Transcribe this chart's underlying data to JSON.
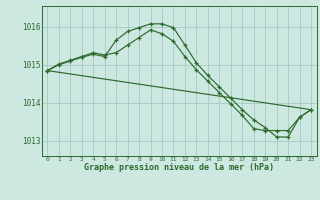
{
  "line1": {
    "x": [
      0,
      1,
      2,
      3,
      4,
      5,
      6,
      7,
      8,
      9,
      10,
      11,
      12,
      13,
      14,
      15,
      16,
      17,
      18,
      19,
      20,
      21,
      22,
      23
    ],
    "y": [
      1014.85,
      1015.0,
      1015.1,
      1015.2,
      1015.28,
      1015.22,
      1015.65,
      1015.88,
      1015.98,
      1016.08,
      1016.08,
      1015.98,
      1015.52,
      1015.05,
      1014.72,
      1014.42,
      1014.12,
      1013.82,
      1013.55,
      1013.35,
      1013.1,
      1013.1,
      1013.62,
      1013.82
    ]
  },
  "line2": {
    "x": [
      0,
      1,
      2,
      3,
      4,
      5,
      6,
      7,
      8,
      9,
      10,
      11,
      12,
      13,
      14,
      15,
      16,
      17,
      18,
      19,
      20,
      21,
      22,
      23
    ],
    "y": [
      1014.85,
      1015.02,
      1015.12,
      1015.22,
      1015.32,
      1015.26,
      1015.32,
      1015.52,
      1015.72,
      1015.92,
      1015.82,
      1015.62,
      1015.22,
      1014.87,
      1014.57,
      1014.27,
      1013.97,
      1013.67,
      1013.32,
      1013.27,
      1013.27,
      1013.27,
      1013.62,
      1013.82
    ]
  },
  "line3": {
    "x": [
      0,
      23
    ],
    "y": [
      1014.85,
      1013.82
    ]
  },
  "color": "#2d6a2d",
  "bg_color": "#cce8e0",
  "grid_color": "#aacfc8",
  "xlabel": "Graphe pression niveau de la mer (hPa)",
  "ylim": [
    1012.6,
    1016.55
  ],
  "xlim_min": -0.5,
  "xlim_max": 23.5,
  "yticks": [
    1013,
    1014,
    1015,
    1016
  ],
  "xticks": [
    0,
    1,
    2,
    3,
    4,
    5,
    6,
    7,
    8,
    9,
    10,
    11,
    12,
    13,
    14,
    15,
    16,
    17,
    18,
    19,
    20,
    21,
    22,
    23
  ],
  "xtick_labels": [
    "0",
    "1",
    "2",
    "3",
    "4",
    "5",
    "6",
    "7",
    "8",
    "9",
    "10",
    "11",
    "12",
    "13",
    "14",
    "15",
    "16",
    "17",
    "18",
    "19",
    "20",
    "21",
    "22",
    "23"
  ]
}
